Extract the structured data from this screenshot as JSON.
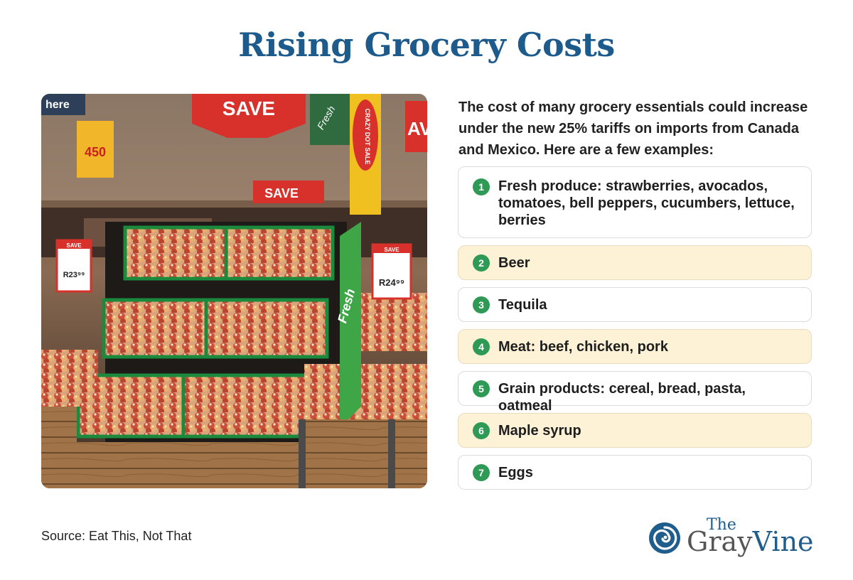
{
  "title": "Rising Grocery Costs",
  "intro": "The cost of many grocery essentials could increase under the new 25% tariffs on imports from Canada and Mexico. Here are a few examples:",
  "items": [
    {
      "number": "1",
      "text": "Fresh produce: strawberries, avocados, tomatoes, bell peppers, cucumbers, lettuce, berries"
    },
    {
      "number": "2",
      "text": "Beer"
    },
    {
      "number": "3",
      "text": "Tequila"
    },
    {
      "number": "4",
      "text": "Meat: beef, chicken, pork"
    },
    {
      "number": "5",
      "text": "Grain products: cereal, bread, pasta, oatmeal"
    },
    {
      "number": "6",
      "text": "Maple syrup"
    },
    {
      "number": "7",
      "text": "Eggs"
    }
  ],
  "source": "Source: Eat This, Not That",
  "photo": {
    "signs": {
      "save_big": "SAVE",
      "save_mid": "SAVE",
      "save_tag_left": "SAVE",
      "save_tag_right": "SAVE",
      "price_left": "R23⁹⁹",
      "price_right": "R24⁹⁹",
      "crazy_deal": "CRAZY DOT SALE",
      "promo_450": "450",
      "fresh": "Fresh",
      "here": "here",
      "sav_right": "AV"
    }
  },
  "logo": {
    "the": "The",
    "gray": "Gray",
    "vine": "Vine",
    "alt": "The GrayVine"
  },
  "colors": {
    "title": "#1d5b8c",
    "number_badge": "#2e9a55",
    "highlight_row": "#fdf2d6",
    "logo_blue": "#1f5d8c",
    "logo_gray": "#555555",
    "logo_green": "#6aaa3c"
  }
}
